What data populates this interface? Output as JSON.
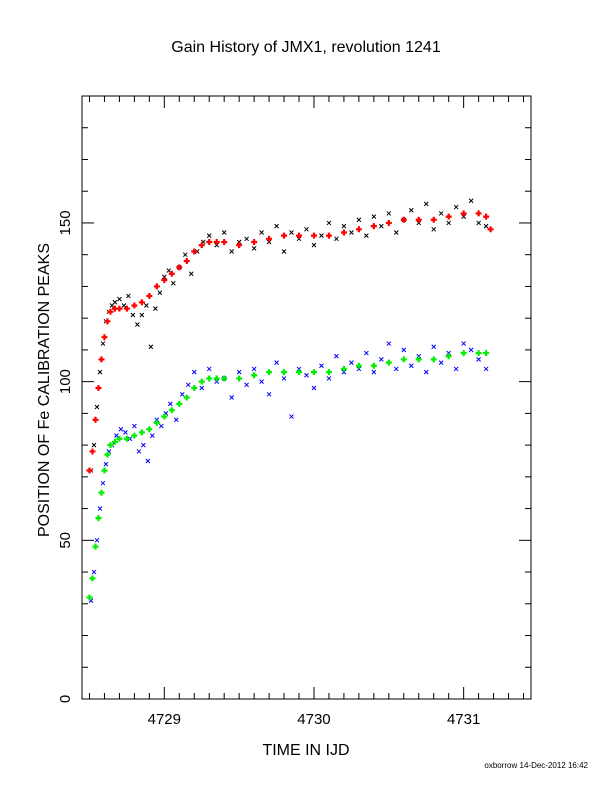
{
  "chart_data": {
    "type": "scatter",
    "title": "Gain History of JMX1, revolution 1241",
    "xlabel": "TIME IN IJD",
    "ylabel": "POSITION OF Fe CALIBRATION PEAKS",
    "footer": "oxborrow 14-Dec-2012 16:42",
    "xlim": [
      4728.45,
      4731.45
    ],
    "ylim": [
      0,
      190
    ],
    "x_ticks": [
      4729,
      4730,
      4731
    ],
    "x_tick_labels": [
      "4729",
      "4730",
      "4731"
    ],
    "y_ticks": [
      0,
      50,
      100,
      150
    ],
    "y_tick_labels": [
      "0",
      "50",
      "100",
      "150"
    ],
    "grid": false,
    "legend": "none",
    "series": [
      {
        "marker": "x",
        "color": "#000000",
        "values": [
          [
            4728.51,
            72
          ],
          [
            4728.53,
            80
          ],
          [
            4728.55,
            92
          ],
          [
            4728.57,
            103
          ],
          [
            4728.59,
            112
          ],
          [
            4728.61,
            119
          ],
          [
            4728.63,
            122
          ],
          [
            4728.65,
            124
          ],
          [
            4728.67,
            125
          ],
          [
            4728.7,
            126
          ],
          [
            4728.73,
            124
          ],
          [
            4728.76,
            127
          ],
          [
            4728.79,
            121
          ],
          [
            4728.82,
            118
          ],
          [
            4728.85,
            121
          ],
          [
            4728.88,
            124
          ],
          [
            4728.91,
            111
          ],
          [
            4728.94,
            123
          ],
          [
            4728.97,
            128
          ],
          [
            4729.0,
            133
          ],
          [
            4729.03,
            135
          ],
          [
            4729.06,
            131
          ],
          [
            4729.1,
            136
          ],
          [
            4729.14,
            140
          ],
          [
            4729.18,
            134
          ],
          [
            4729.22,
            141
          ],
          [
            4729.26,
            144
          ],
          [
            4729.3,
            146
          ],
          [
            4729.35,
            143
          ],
          [
            4729.4,
            147
          ],
          [
            4729.45,
            141
          ],
          [
            4729.5,
            144
          ],
          [
            4729.55,
            145
          ],
          [
            4729.6,
            142
          ],
          [
            4729.65,
            147
          ],
          [
            4729.7,
            144
          ],
          [
            4729.75,
            149
          ],
          [
            4729.8,
            141
          ],
          [
            4729.85,
            147
          ],
          [
            4729.9,
            145
          ],
          [
            4729.95,
            148
          ],
          [
            4730.0,
            143
          ],
          [
            4730.05,
            146
          ],
          [
            4730.1,
            150
          ],
          [
            4730.15,
            145
          ],
          [
            4730.2,
            149
          ],
          [
            4730.25,
            147
          ],
          [
            4730.3,
            151
          ],
          [
            4730.35,
            146
          ],
          [
            4730.4,
            152
          ],
          [
            4730.45,
            149
          ],
          [
            4730.5,
            153
          ],
          [
            4730.55,
            147
          ],
          [
            4730.6,
            151
          ],
          [
            4730.65,
            154
          ],
          [
            4730.7,
            150
          ],
          [
            4730.75,
            156
          ],
          [
            4730.8,
            148
          ],
          [
            4730.85,
            153
          ],
          [
            4730.9,
            150
          ],
          [
            4730.95,
            155
          ],
          [
            4731.0,
            152
          ],
          [
            4731.05,
            157
          ],
          [
            4731.1,
            150
          ],
          [
            4731.15,
            149
          ]
        ]
      },
      {
        "marker": "+",
        "color": "#ff0000",
        "values": [
          [
            4728.5,
            72
          ],
          [
            4728.52,
            78
          ],
          [
            4728.54,
            88
          ],
          [
            4728.56,
            98
          ],
          [
            4728.58,
            107
          ],
          [
            4728.6,
            114
          ],
          [
            4728.62,
            119
          ],
          [
            4728.64,
            122
          ],
          [
            4728.67,
            123
          ],
          [
            4728.7,
            123
          ],
          [
            4728.75,
            123
          ],
          [
            4728.8,
            124
          ],
          [
            4728.85,
            125
          ],
          [
            4728.9,
            127
          ],
          [
            4728.95,
            130
          ],
          [
            4729.0,
            132
          ],
          [
            4729.05,
            134
          ],
          [
            4729.1,
            136
          ],
          [
            4729.15,
            138
          ],
          [
            4729.2,
            141
          ],
          [
            4729.25,
            143
          ],
          [
            4729.3,
            144
          ],
          [
            4729.35,
            144
          ],
          [
            4729.4,
            144
          ],
          [
            4729.5,
            143
          ],
          [
            4729.6,
            144
          ],
          [
            4729.7,
            145
          ],
          [
            4729.8,
            146
          ],
          [
            4729.9,
            146
          ],
          [
            4730.0,
            146
          ],
          [
            4730.1,
            146
          ],
          [
            4730.2,
            147
          ],
          [
            4730.3,
            148
          ],
          [
            4730.4,
            149
          ],
          [
            4730.5,
            150
          ],
          [
            4730.6,
            151
          ],
          [
            4730.7,
            151
          ],
          [
            4730.8,
            151
          ],
          [
            4730.9,
            152
          ],
          [
            4731.0,
            153
          ],
          [
            4731.1,
            153
          ],
          [
            4731.15,
            152
          ],
          [
            4731.18,
            148
          ]
        ]
      },
      {
        "marker": "x",
        "color": "#0000ff",
        "values": [
          [
            4728.51,
            31
          ],
          [
            4728.53,
            40
          ],
          [
            4728.55,
            50
          ],
          [
            4728.57,
            60
          ],
          [
            4728.59,
            68
          ],
          [
            4728.61,
            74
          ],
          [
            4728.63,
            78
          ],
          [
            4728.65,
            80
          ],
          [
            4728.68,
            83
          ],
          [
            4728.71,
            85
          ],
          [
            4728.74,
            84
          ],
          [
            4728.77,
            82
          ],
          [
            4728.8,
            86
          ],
          [
            4728.83,
            78
          ],
          [
            4728.86,
            80
          ],
          [
            4728.89,
            75
          ],
          [
            4728.92,
            83
          ],
          [
            4728.95,
            88
          ],
          [
            4728.98,
            86
          ],
          [
            4729.01,
            90
          ],
          [
            4729.04,
            93
          ],
          [
            4729.08,
            88
          ],
          [
            4729.12,
            96
          ],
          [
            4729.16,
            99
          ],
          [
            4729.2,
            103
          ],
          [
            4729.25,
            98
          ],
          [
            4729.3,
            104
          ],
          [
            4729.35,
            100
          ],
          [
            4729.4,
            101
          ],
          [
            4729.45,
            95
          ],
          [
            4729.5,
            103
          ],
          [
            4729.55,
            99
          ],
          [
            4729.6,
            104
          ],
          [
            4729.65,
            100
          ],
          [
            4729.7,
            96
          ],
          [
            4729.75,
            106
          ],
          [
            4729.8,
            101
          ],
          [
            4729.85,
            89
          ],
          [
            4729.9,
            104
          ],
          [
            4729.95,
            102
          ],
          [
            4730.0,
            98
          ],
          [
            4730.05,
            105
          ],
          [
            4730.1,
            101
          ],
          [
            4730.15,
            108
          ],
          [
            4730.2,
            103
          ],
          [
            4730.25,
            106
          ],
          [
            4730.3,
            104
          ],
          [
            4730.35,
            109
          ],
          [
            4730.4,
            103
          ],
          [
            4730.45,
            107
          ],
          [
            4730.5,
            112
          ],
          [
            4730.55,
            104
          ],
          [
            4730.6,
            110
          ],
          [
            4730.65,
            105
          ],
          [
            4730.7,
            108
          ],
          [
            4730.75,
            103
          ],
          [
            4730.8,
            111
          ],
          [
            4730.85,
            106
          ],
          [
            4730.9,
            109
          ],
          [
            4730.95,
            104
          ],
          [
            4731.0,
            112
          ],
          [
            4731.05,
            110
          ],
          [
            4731.1,
            107
          ],
          [
            4731.15,
            104
          ]
        ]
      },
      {
        "marker": "+",
        "color": "#00ee00",
        "values": [
          [
            4728.5,
            32
          ],
          [
            4728.52,
            38
          ],
          [
            4728.54,
            48
          ],
          [
            4728.56,
            57
          ],
          [
            4728.58,
            65
          ],
          [
            4728.6,
            72
          ],
          [
            4728.62,
            77
          ],
          [
            4728.64,
            80
          ],
          [
            4728.67,
            81
          ],
          [
            4728.7,
            82
          ],
          [
            4728.75,
            82
          ],
          [
            4728.8,
            83
          ],
          [
            4728.85,
            84
          ],
          [
            4728.9,
            85
          ],
          [
            4728.95,
            87
          ],
          [
            4729.0,
            89
          ],
          [
            4729.05,
            91
          ],
          [
            4729.1,
            93
          ],
          [
            4729.15,
            95
          ],
          [
            4729.2,
            98
          ],
          [
            4729.25,
            100
          ],
          [
            4729.3,
            101
          ],
          [
            4729.35,
            101
          ],
          [
            4729.4,
            101
          ],
          [
            4729.5,
            101
          ],
          [
            4729.6,
            102
          ],
          [
            4729.7,
            103
          ],
          [
            4729.8,
            103
          ],
          [
            4729.9,
            103
          ],
          [
            4730.0,
            103
          ],
          [
            4730.1,
            103
          ],
          [
            4730.2,
            104
          ],
          [
            4730.3,
            105
          ],
          [
            4730.4,
            105
          ],
          [
            4730.5,
            106
          ],
          [
            4730.6,
            107
          ],
          [
            4730.7,
            107
          ],
          [
            4730.8,
            107
          ],
          [
            4730.9,
            108
          ],
          [
            4731.0,
            109
          ],
          [
            4731.1,
            109
          ],
          [
            4731.15,
            109
          ]
        ]
      }
    ]
  }
}
